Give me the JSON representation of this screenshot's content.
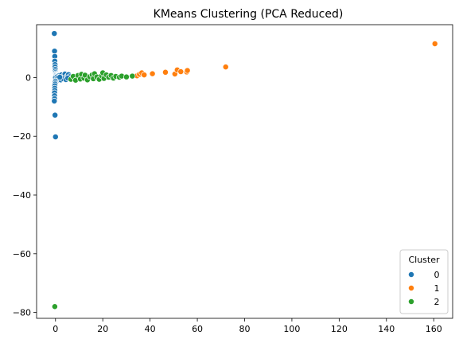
{
  "chart_data": {
    "type": "scatter",
    "title": "KMeans Clustering (PCA Reduced)",
    "xlabel": "",
    "ylabel": "",
    "xlim": [
      -8,
      168
    ],
    "ylim": [
      -82,
      18
    ],
    "xticks": [
      0,
      20,
      40,
      60,
      80,
      100,
      120,
      140,
      160
    ],
    "yticks": [
      0,
      -20,
      -40,
      -60,
      -80
    ],
    "xtick_labels": [
      "0",
      "20",
      "40",
      "60",
      "80",
      "100",
      "120",
      "140",
      "160"
    ],
    "ytick_labels": [
      "0",
      "−20",
      "−40",
      "−60",
      "−80"
    ],
    "grid": false,
    "legend": {
      "title": "Cluster",
      "placement": "lower-right",
      "entries": [
        "0",
        "1",
        "2"
      ]
    },
    "series": [
      {
        "name": "0",
        "color": "#1f77b4",
        "points": [
          [
            -0.5,
            15
          ],
          [
            -0.4,
            9
          ],
          [
            -0.3,
            7.2
          ],
          [
            -0.3,
            5.6
          ],
          [
            -0.2,
            4.4
          ],
          [
            -0.2,
            3.6
          ],
          [
            -0.1,
            2.8
          ],
          [
            -0.1,
            2.2
          ],
          [
            0,
            1.7
          ],
          [
            0.1,
            1.3
          ],
          [
            0.2,
            1.0
          ],
          [
            0.3,
            0.8
          ],
          [
            0.5,
            0.6
          ],
          [
            0.8,
            0.5
          ],
          [
            1.2,
            0.4
          ],
          [
            1.6,
            0.7
          ],
          [
            2.0,
            0.3
          ],
          [
            2.5,
            0.9
          ],
          [
            3.0,
            0.2
          ],
          [
            3.5,
            0.6
          ],
          [
            4.0,
            1.2
          ],
          [
            4.5,
            0.1
          ],
          [
            5.0,
            0.5
          ],
          [
            5.5,
            1.0
          ],
          [
            6.0,
            0.3
          ],
          [
            0.2,
            -0.3
          ],
          [
            0.4,
            -0.6
          ],
          [
            0.8,
            -0.9
          ],
          [
            1.4,
            -0.5
          ],
          [
            2.2,
            -0.8
          ],
          [
            3.2,
            -0.4
          ],
          [
            4.4,
            -0.7
          ],
          [
            5.2,
            -0.2
          ],
          [
            0,
            0
          ],
          [
            0.6,
            0.2
          ],
          [
            1.0,
            -0.1
          ],
          [
            1.8,
            0.1
          ],
          [
            -0.1,
            -1.2
          ],
          [
            -0.2,
            -1.7
          ],
          [
            -0.2,
            -2.2
          ],
          [
            -0.3,
            -2.8
          ],
          [
            -0.3,
            -3.6
          ],
          [
            -0.3,
            -4.4
          ],
          [
            -0.4,
            -5.2
          ],
          [
            -0.4,
            -6.2
          ],
          [
            -0.4,
            -7.2
          ],
          [
            -0.5,
            -8.0
          ],
          [
            -0.2,
            -12.8
          ],
          [
            0,
            -20.2
          ]
        ]
      },
      {
        "name": "1",
        "color": "#ff7f0e",
        "points": [
          [
            34.5,
            0.6
          ],
          [
            35.5,
            1.1
          ],
          [
            36.5,
            1.6
          ],
          [
            37.5,
            0.9
          ],
          [
            41.0,
            1.3
          ],
          [
            46.5,
            1.8
          ],
          [
            50.5,
            1.2
          ],
          [
            51.5,
            2.6
          ],
          [
            53.0,
            2.0
          ],
          [
            55.5,
            1.9
          ],
          [
            55.8,
            2.4
          ],
          [
            72.0,
            3.6
          ],
          [
            160.5,
            11.5
          ]
        ]
      },
      {
        "name": "2",
        "color": "#2ca02c",
        "points": [
          [
            6.5,
            -0.6
          ],
          [
            7.5,
            0.4
          ],
          [
            8.5,
            -0.9
          ],
          [
            9.5,
            0.7
          ],
          [
            10.5,
            -0.5
          ],
          [
            11.0,
            1.1
          ],
          [
            12.0,
            -0.2
          ],
          [
            12.5,
            0.8
          ],
          [
            13.5,
            -0.8
          ],
          [
            14.5,
            0.3
          ],
          [
            15.5,
            0.9
          ],
          [
            16.0,
            -0.4
          ],
          [
            16.5,
            1.3
          ],
          [
            17.5,
            0.2
          ],
          [
            18.5,
            -0.6
          ],
          [
            19.5,
            0.6
          ],
          [
            20.0,
            1.6
          ],
          [
            20.5,
            -0.3
          ],
          [
            21.5,
            0.9
          ],
          [
            22.5,
            0.1
          ],
          [
            23.5,
            0.7
          ],
          [
            24.5,
            -0.2
          ],
          [
            25.5,
            0.4
          ],
          [
            27.0,
            0.1
          ],
          [
            28.0,
            0.5
          ],
          [
            30.0,
            0.2
          ],
          [
            32.5,
            0.5
          ],
          [
            -0.3,
            -78
          ]
        ]
      }
    ]
  }
}
